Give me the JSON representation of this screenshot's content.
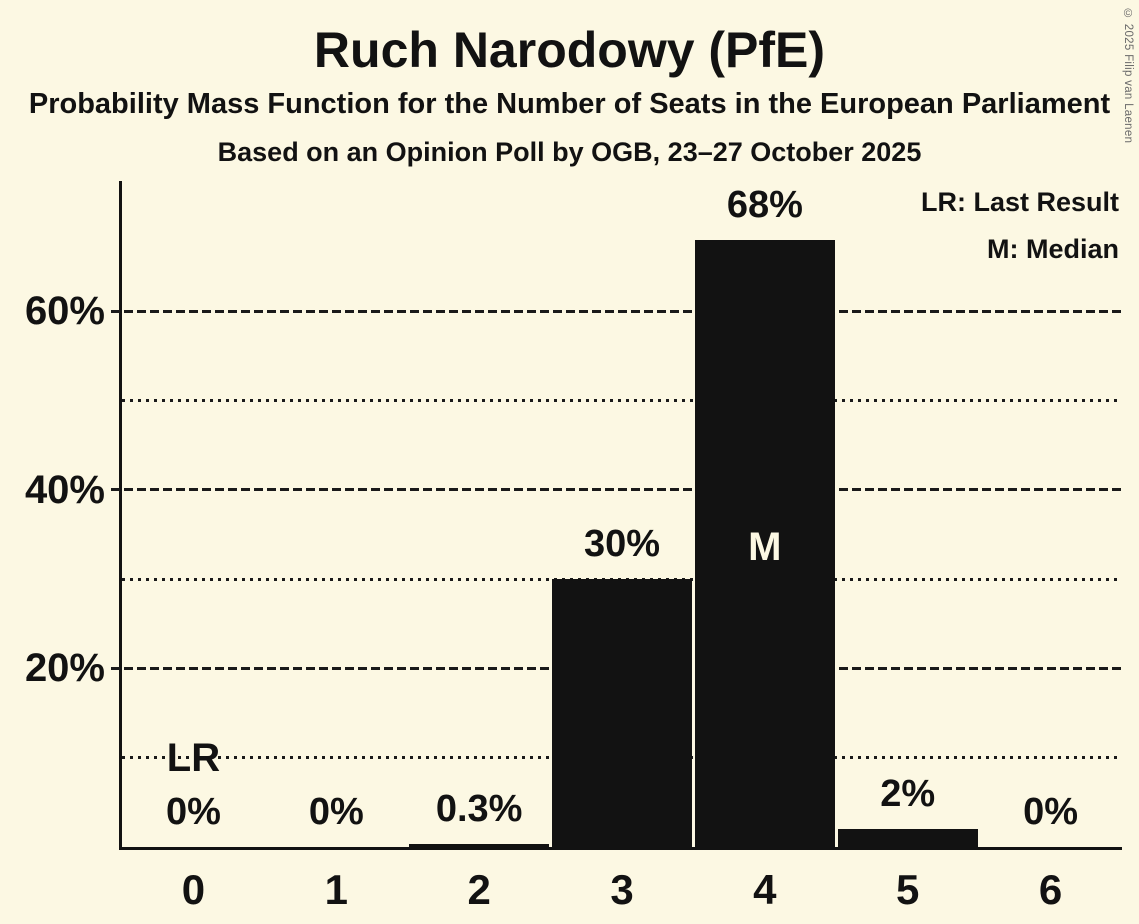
{
  "title": "Ruch Narodowy (PfE)",
  "subtitle1": "Probability Mass Function for the Number of Seats in the European Parliament",
  "subtitle2": "Based on an Opinion Poll by OGB, 23–27 October 2025",
  "legend": {
    "lr": "LR: Last Result",
    "m": "M: Median"
  },
  "copyright": "© 2025 Filip van Laenen",
  "colors": {
    "background": "#FCF8E3",
    "bar": "#121212",
    "text": "#121212",
    "median_label": "#FCF8E3",
    "copyright": "#6a6a6a"
  },
  "chart_data": {
    "type": "bar",
    "title": "Ruch Narodowy (PfE)",
    "categories": [
      "0",
      "1",
      "2",
      "3",
      "4",
      "5",
      "6"
    ],
    "values": [
      0,
      0,
      0.3,
      30,
      68,
      2,
      0
    ],
    "bar_labels": [
      "0%",
      "0%",
      "0.3%",
      "30%",
      "68%",
      "2%",
      "0%"
    ],
    "xlabel": "",
    "ylabel": "",
    "ylim": [
      0,
      74.6
    ],
    "ytick_values": [
      20,
      40,
      60
    ],
    "ytick_labels": [
      "20%",
      "40%",
      "60%"
    ],
    "dotted_gridline_values": [
      10,
      30,
      50
    ],
    "grid": true,
    "legend_position": "top-right",
    "annotations": {
      "last_result": {
        "seat_index": 0,
        "label": "LR",
        "at_percent": 10
      },
      "median": {
        "seat_index": 4,
        "label": "M",
        "at_percent_center": 33.6
      }
    }
  }
}
